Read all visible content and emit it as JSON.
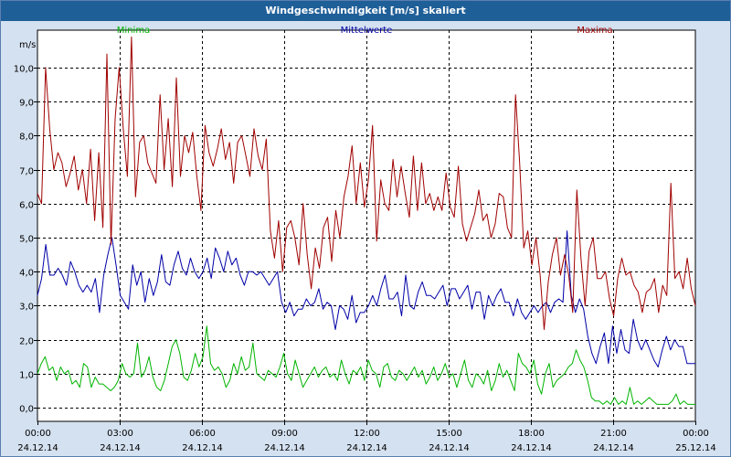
{
  "window": {
    "title": "Windgeschwindigkeit [m/s] skaliert"
  },
  "colors": {
    "background": "#d4e1f0",
    "title_bar": "#1f5f98",
    "minima": "#00b400",
    "mittelwerte": "#0000a8",
    "maxima": "#a00000",
    "grid": "#000000"
  },
  "chart_data": {
    "type": "line",
    "title": "Windgeschwindigkeit [m/s] skaliert",
    "ylabel": "m/s",
    "xlabel": "",
    "ylim": [
      -0.4,
      11.1
    ],
    "yticks": [
      0.0,
      1.0,
      2.0,
      3.0,
      4.0,
      5.0,
      6.0,
      7.0,
      8.0,
      9.0,
      10.0
    ],
    "ytick_labels": [
      "0,0",
      "1,0",
      "2,0",
      "3,0",
      "4,0",
      "5,0",
      "6,0",
      "7,0",
      "8,0",
      "9,0",
      "10,0"
    ],
    "xlim_hours": [
      0,
      24
    ],
    "xticks": [
      {
        "time": "00:00",
        "date": "24.12.14"
      },
      {
        "time": "03:00",
        "date": "24.12.14"
      },
      {
        "time": "06:00",
        "date": "24.12.14"
      },
      {
        "time": "09:00",
        "date": "24.12.14"
      },
      {
        "time": "12:00",
        "date": "24.12.14"
      },
      {
        "time": "15:00",
        "date": "24.12.14"
      },
      {
        "time": "18:00",
        "date": "24.12.14"
      },
      {
        "time": "21:00",
        "date": "24.12.14"
      },
      {
        "time": "00:00",
        "date": "25.12.14"
      }
    ],
    "grid": true,
    "legend_position": "top",
    "series": [
      {
        "name": "Minima",
        "color_key": "minima",
        "values": [
          1.0,
          1.3,
          1.5,
          1.1,
          1.2,
          0.8,
          1.2,
          1.0,
          1.1,
          0.7,
          0.8,
          0.6,
          1.3,
          1.2,
          0.6,
          0.9,
          0.7,
          0.7,
          0.6,
          0.5,
          0.6,
          0.8,
          1.3,
          1.0,
          0.9,
          1.0,
          1.9,
          0.9,
          1.1,
          1.5,
          0.9,
          0.6,
          0.5,
          0.8,
          1.3,
          1.8,
          2.0,
          1.6,
          0.9,
          0.8,
          1.1,
          1.6,
          1.2,
          1.5,
          2.4,
          1.3,
          1.1,
          1.2,
          1.0,
          0.6,
          0.8,
          1.3,
          1.0,
          1.5,
          1.1,
          1.2,
          1.9,
          1.0,
          0.9,
          0.8,
          1.1,
          1.0,
          0.9,
          1.2,
          1.6,
          1.0,
          0.8,
          1.4,
          1.0,
          0.6,
          0.8,
          1.0,
          1.2,
          0.9,
          1.1,
          1.2,
          0.9,
          1.0,
          0.8,
          1.4,
          1.0,
          0.7,
          1.1,
          1.0,
          1.2,
          0.8,
          1.4,
          1.1,
          1.0,
          0.6,
          1.2,
          1.3,
          0.9,
          0.8,
          1.1,
          1.0,
          0.8,
          1.0,
          1.2,
          0.9,
          1.1,
          0.7,
          0.9,
          1.2,
          0.8,
          1.0,
          1.3,
          0.9,
          1.0,
          0.6,
          1.0,
          1.4,
          0.8,
          0.6,
          1.0,
          0.9,
          0.7,
          1.1,
          0.5,
          0.8,
          1.3,
          0.9,
          1.1,
          0.8,
          0.5,
          1.6,
          1.3,
          1.2,
          1.0,
          1.4,
          0.7,
          0.4,
          1.0,
          1.3,
          0.6,
          0.8,
          0.9,
          1.0,
          1.2,
          1.3,
          1.7,
          1.4,
          1.2,
          0.8,
          0.3,
          0.2,
          0.2,
          0.1,
          0.2,
          0.1,
          0.3,
          0.1,
          0.2,
          0.1,
          0.6,
          0.1,
          0.2,
          0.1,
          0.2,
          0.3,
          0.2,
          0.1,
          0.1,
          0.1,
          0.1,
          0.2,
          0.4,
          0.1,
          0.2,
          0.1,
          0.1,
          0.1
        ]
      },
      {
        "name": "Mittelwerte",
        "color_key": "mittelwerte",
        "values": [
          3.3,
          3.8,
          4.8,
          3.9,
          3.9,
          4.1,
          3.9,
          3.6,
          4.3,
          4.0,
          3.6,
          3.4,
          3.6,
          3.4,
          3.8,
          2.8,
          3.9,
          4.5,
          5.0,
          4.2,
          3.3,
          3.1,
          2.9,
          4.2,
          3.6,
          4.0,
          3.1,
          3.8,
          3.3,
          3.7,
          4.5,
          3.7,
          3.6,
          4.2,
          4.6,
          4.1,
          3.9,
          4.4,
          4.0,
          3.8,
          4.0,
          4.4,
          3.8,
          4.7,
          4.4,
          4.0,
          4.6,
          4.2,
          4.4,
          3.9,
          3.6,
          4.0,
          4.0,
          3.9,
          4.0,
          3.8,
          3.6,
          3.8,
          4.0,
          3.1,
          2.8,
          3.1,
          2.7,
          2.9,
          2.9,
          3.2,
          3.0,
          3.1,
          3.5,
          2.9,
          3.1,
          3.0,
          2.3,
          3.0,
          2.9,
          2.6,
          3.3,
          2.5,
          2.8,
          2.8,
          3.0,
          3.3,
          3.0,
          3.5,
          3.9,
          3.2,
          3.2,
          3.4,
          2.7,
          3.9,
          3.0,
          2.9,
          3.4,
          3.7,
          3.3,
          3.3,
          3.2,
          3.4,
          3.6,
          3.0,
          3.5,
          3.5,
          3.2,
          3.4,
          3.6,
          2.9,
          3.4,
          3.4,
          2.6,
          3.3,
          3.0,
          3.3,
          3.5,
          3.1,
          3.1,
          2.7,
          3.2,
          2.8,
          2.6,
          2.8,
          3.0,
          2.8,
          3.0,
          3.1,
          2.8,
          3.1,
          3.2,
          3.1,
          5.2,
          3.3,
          2.8,
          3.2,
          2.9,
          2.1,
          1.6,
          1.3,
          1.8,
          2.2,
          1.3,
          2.4,
          1.6,
          2.3,
          1.7,
          1.6,
          2.6,
          2.0,
          1.7,
          2.0,
          1.7,
          1.4,
          1.2,
          1.7,
          2.1,
          1.7,
          2.0,
          1.8,
          1.8,
          1.3,
          1.3,
          1.3
        ]
      },
      {
        "name": "Maxima",
        "color_key": "maxima",
        "values": [
          6.3,
          6.0,
          10.0,
          8.2,
          7.0,
          7.5,
          7.2,
          6.5,
          6.9,
          7.4,
          6.4,
          7.0,
          6.0,
          7.6,
          5.5,
          7.5,
          5.3,
          10.4,
          4.8,
          8.5,
          10.0,
          8.2,
          6.8,
          10.9,
          6.2,
          7.8,
          8.0,
          7.2,
          6.9,
          6.6,
          9.2,
          7.0,
          8.5,
          6.5,
          9.7,
          6.8,
          8.0,
          7.5,
          8.1,
          6.8,
          5.8,
          8.3,
          7.5,
          7.1,
          7.6,
          8.2,
          7.3,
          7.8,
          6.6,
          7.8,
          8.0,
          7.4,
          6.8,
          8.2,
          7.4,
          7.0,
          7.9,
          5.2,
          4.4,
          5.5,
          4.0,
          5.3,
          5.5,
          5.0,
          4.2,
          6.0,
          4.5,
          3.5,
          4.7,
          4.1,
          5.3,
          5.6,
          4.3,
          5.8,
          5.0,
          6.2,
          6.8,
          7.7,
          6.0,
          7.2,
          5.9,
          6.7,
          8.3,
          4.9,
          6.7,
          6.0,
          5.8,
          7.3,
          6.2,
          7.1,
          6.3,
          5.6,
          7.4,
          5.8,
          7.2,
          6.0,
          6.3,
          5.8,
          6.2,
          5.8,
          6.9,
          5.9,
          5.6,
          7.1,
          5.4,
          4.9,
          5.3,
          5.7,
          6.4,
          5.5,
          5.7,
          5.0,
          5.4,
          6.3,
          6.2,
          5.3,
          5.0,
          9.2,
          7.2,
          4.7,
          5.2,
          4.2,
          5.0,
          3.9,
          2.3,
          3.7,
          4.5,
          5.0,
          3.9,
          4.5,
          3.9,
          2.8,
          6.4,
          4.4,
          3.0,
          4.6,
          5.0,
          3.8,
          3.8,
          4.0,
          3.2,
          2.7,
          3.8,
          4.4,
          3.9,
          4.0,
          3.6,
          3.4,
          2.8,
          3.4,
          3.5,
          3.8,
          2.8,
          3.6,
          3.3,
          6.6,
          3.8,
          4.0,
          3.5,
          4.4,
          3.5,
          3.0
        ]
      }
    ]
  }
}
